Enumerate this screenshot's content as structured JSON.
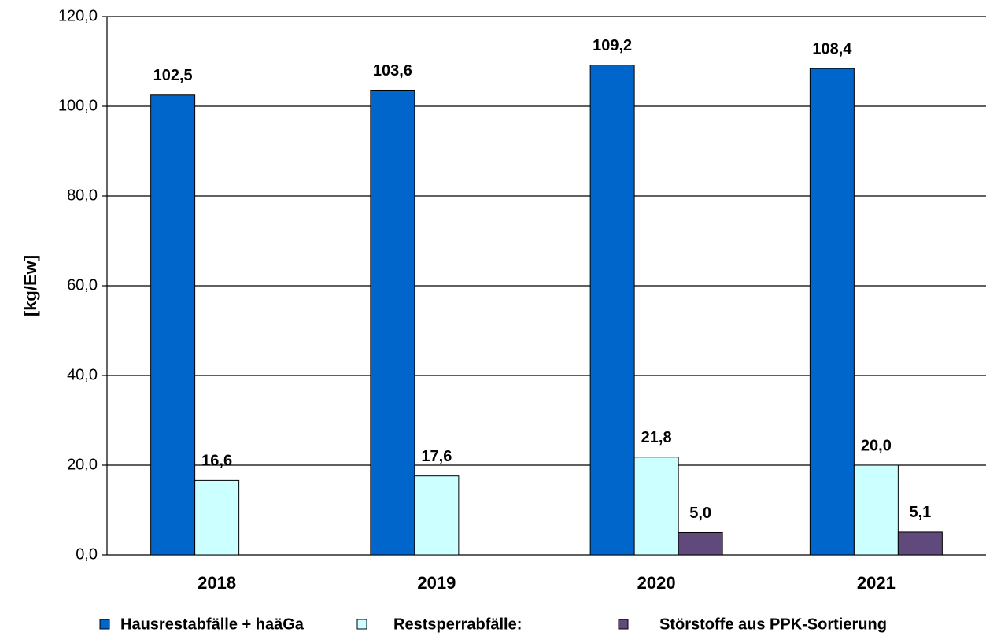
{
  "chart_data": {
    "type": "bar",
    "y_label": "[kg/Ew]",
    "categories": [
      "2018",
      "2019",
      "2020",
      "2021"
    ],
    "series": [
      {
        "name": "Hausrestabfälle + haäGa",
        "color": "#0066cc",
        "values": [
          102.5,
          103.6,
          109.2,
          108.4
        ],
        "value_labels": [
          "102,5",
          "103,6",
          "109,2",
          "108,4"
        ]
      },
      {
        "name": "Restsperrabfälle:",
        "color": "#ccffff",
        "values": [
          16.6,
          17.6,
          21.8,
          20.0
        ],
        "value_labels": [
          "16,6",
          "17,6",
          "21,8",
          "20,0"
        ]
      },
      {
        "name": "Störstoffe aus PPK-Sortierung",
        "color": "#604a7b",
        "values": [
          null,
          null,
          5.0,
          5.1
        ],
        "value_labels": [
          null,
          null,
          "5,0",
          "5,1"
        ]
      }
    ],
    "ylim": [
      0,
      120
    ],
    "yticks": [
      {
        "value": 0,
        "label": "0,0"
      },
      {
        "value": 20,
        "label": "20,0"
      },
      {
        "value": 40,
        "label": "40,0"
      },
      {
        "value": 60,
        "label": "60,0"
      },
      {
        "value": 80,
        "label": "80,0"
      },
      {
        "value": 100,
        "label": "100,0"
      },
      {
        "value": 120,
        "label": "120,0"
      }
    ],
    "grid": true
  }
}
